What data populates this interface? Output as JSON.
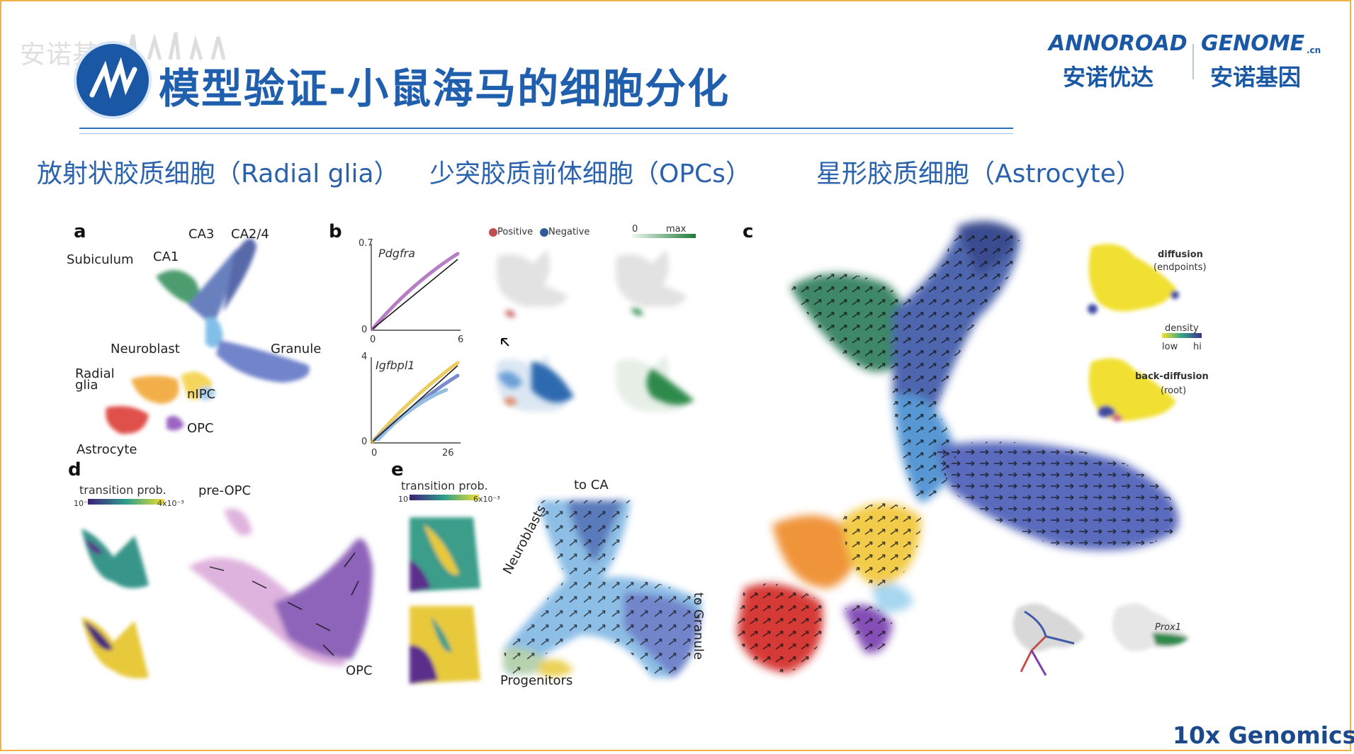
{
  "watermark": "安诺基因",
  "title": "模型验证-小鼠海马的细胞分化",
  "brand": {
    "en_left": "ANNOROAD",
    "en_right": "GENOME",
    "en_right_suffix": ".cn",
    "cn_left": "安诺优达",
    "cn_right": "安诺基因"
  },
  "subtitles": [
    "放射状胶质细胞（Radial glia）",
    "少突胶质前体细胞（OPCs）",
    "星形胶质细胞（Astrocyte）"
  ],
  "footer": "10x Genomics",
  "panel_a": {
    "letter": "a",
    "labels": [
      "CA3",
      "CA2/4",
      "Subiculum",
      "CA1",
      "Neuroblast",
      "Granule",
      "Radial glia",
      "nIPC",
      "OPC",
      "Astrocyte"
    ]
  },
  "panel_b": {
    "letter": "b",
    "gene1": "Pdgfra",
    "gene2": "Igfbpl1",
    "plot1_y_tick": "0.7",
    "plot1_y_zero": "0",
    "plot1_x_zero": "0",
    "plot1_x_max": "6",
    "plot2_y_tick": "4",
    "plot2_y_zero": "0",
    "plot2_x_zero": "0",
    "plot2_x_max": "26",
    "legend_positive": "Positive",
    "legend_negative": "Negative",
    "scale_min": "0",
    "scale_max": "max"
  },
  "panel_c": {
    "letter": "c",
    "diffusion": "diffusion",
    "endpoints": "(endpoints)",
    "density": "density",
    "low": "low",
    "hi": "hi",
    "back_diffusion": "back-diffusion",
    "root": "(root)",
    "gene": "Prox1"
  },
  "panel_d": {
    "letter": "d",
    "transition": "transition prob.",
    "scale_min": "10⁻³",
    "scale_max": "4x10⁻³",
    "pre_opc": "pre-OPC",
    "opc": "OPC"
  },
  "panel_e": {
    "letter": "e",
    "transition": "transition prob.",
    "scale_min": "10⁻³",
    "scale_max": "6x10⁻³",
    "to_ca": "to CA",
    "neuroblasts": "Neuroblasts",
    "to_granule": "to Granule",
    "progenitors": "Progenitors"
  },
  "colors": {
    "title": "#1f5fae",
    "subtitle": "#2a62ad",
    "frame": "#f2b24a",
    "subiculum": "#2e8b57",
    "ca": "#3a4f9c",
    "granule": "#5a6fc2",
    "neuroblast": "#6cb4e4",
    "radial_glia": "#f0a22a",
    "astrocyte": "#d9302a",
    "opc": "#8a4bb5"
  }
}
